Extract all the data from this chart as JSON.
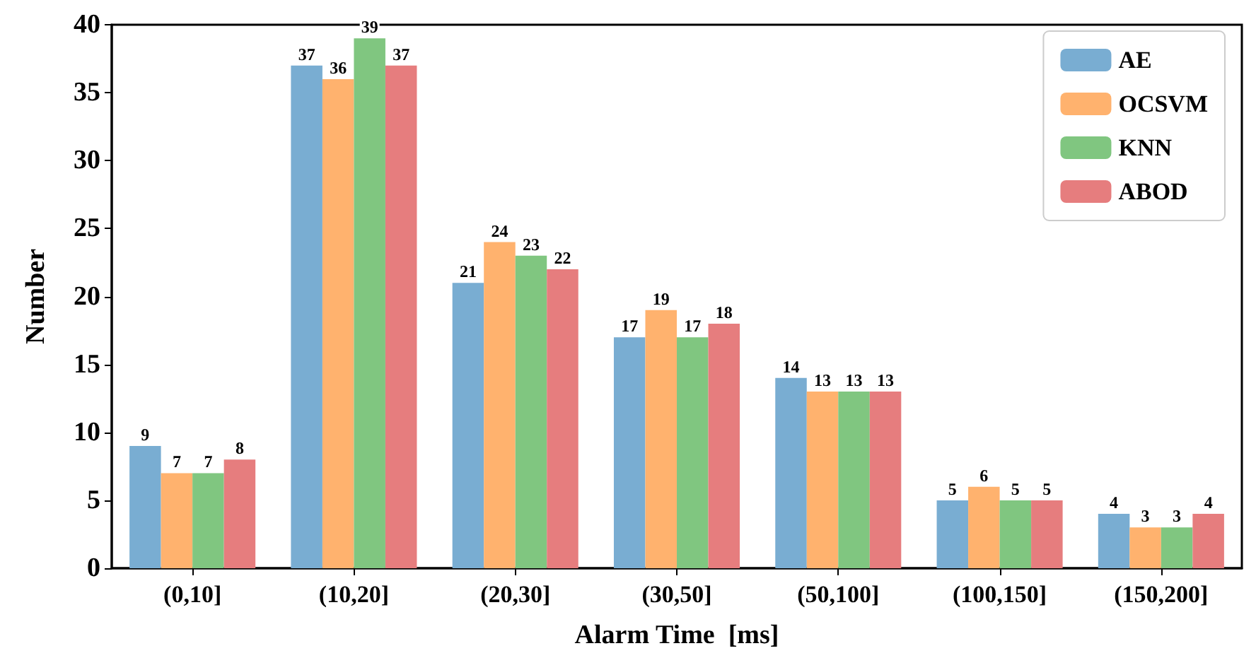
{
  "chart_data": {
    "type": "bar",
    "xlabel": "Alarm Time  [ms]",
    "ylabel": "Number",
    "categories": [
      "(0,10]",
      "(10,20]",
      "(20,30]",
      "(30,50]",
      "(50,100]",
      "(100,150]",
      "(150,200]"
    ],
    "series": [
      {
        "name": "AE",
        "color": "#79add2",
        "values": [
          9,
          37,
          21,
          17,
          14,
          5,
          4
        ]
      },
      {
        "name": "OCSVM",
        "color": "#ffb26e",
        "values": [
          7,
          36,
          24,
          19,
          13,
          6,
          3
        ]
      },
      {
        "name": "KNN",
        "color": "#80c680",
        "values": [
          7,
          39,
          23,
          17,
          13,
          5,
          3
        ]
      },
      {
        "name": "ABOD",
        "color": "#e67d7e",
        "values": [
          8,
          37,
          22,
          18,
          13,
          5,
          4
        ]
      }
    ],
    "ylim": [
      0,
      40
    ],
    "yticks": [
      0,
      5,
      10,
      15,
      20,
      25,
      30,
      35,
      40
    ],
    "data_labels": true,
    "legend": "top right",
    "grid": false
  }
}
